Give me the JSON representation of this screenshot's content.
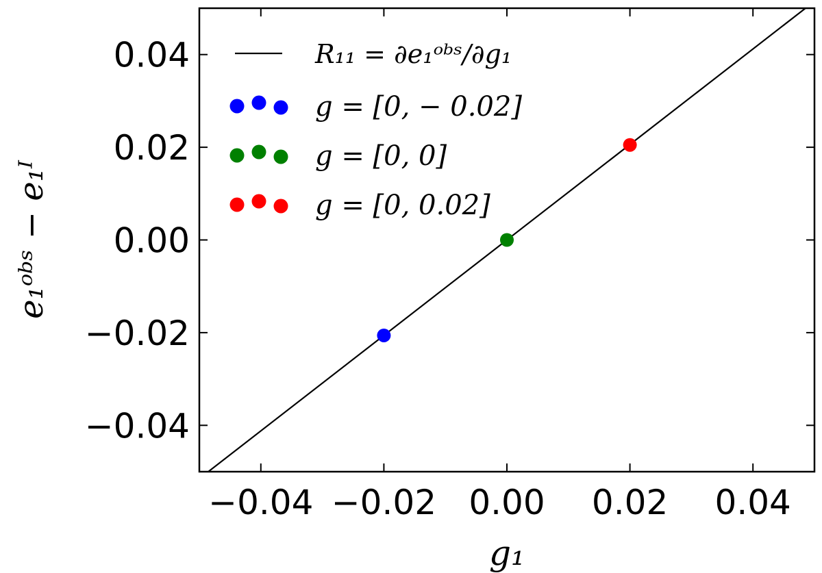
{
  "chart_data": {
    "type": "scatter",
    "title": "",
    "xlabel": "g₁",
    "ylabel": "e₁ᵒᵇˢ − e₁ᴵ",
    "xlim": [
      -0.05,
      0.05
    ],
    "ylim": [
      -0.05,
      0.05
    ],
    "grid": false,
    "legend_position": "top-left",
    "xticks": [
      -0.04,
      -0.02,
      0.0,
      0.02,
      0.04
    ],
    "xtick_labels": [
      "−0.04",
      "−0.02",
      "0.00",
      "0.02",
      "0.04"
    ],
    "yticks": [
      -0.04,
      -0.02,
      0.0,
      0.02,
      0.04
    ],
    "ytick_labels": [
      "−0.04",
      "−0.02",
      "0.00",
      "0.02",
      "0.04"
    ],
    "line": {
      "name": "R₁₁ = ∂e₁ᵒᵇˢ/∂g₁",
      "slope": 1.03,
      "intercept": 0.0,
      "color": "#000000"
    },
    "series": [
      {
        "name": "g = [0, − 0.02]",
        "color": "#0000ff",
        "x": [
          -0.02
        ],
        "y": [
          -0.0206
        ]
      },
      {
        "name": "g = [0, 0]",
        "color": "#008000",
        "x": [
          0.0
        ],
        "y": [
          0.0
        ]
      },
      {
        "name": "g = [0, 0.02]",
        "color": "#ff0000",
        "x": [
          0.02
        ],
        "y": [
          0.0205
        ]
      }
    ]
  }
}
